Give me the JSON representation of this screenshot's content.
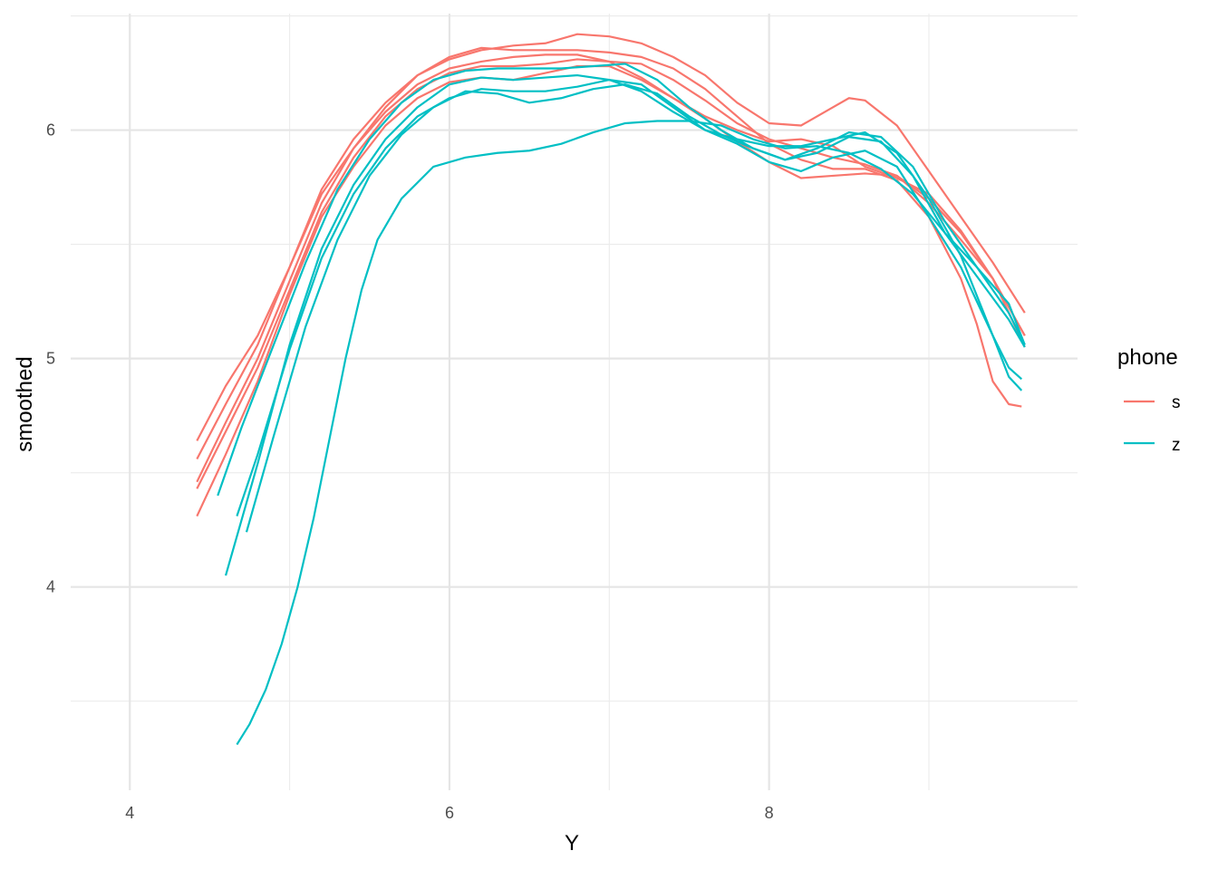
{
  "chart_data": {
    "type": "line",
    "xlabel": "Y",
    "ylabel": "smoothed",
    "xlim": [
      3.63,
      9.93
    ],
    "ylim": [
      3.11,
      6.51
    ],
    "x_ticks": [
      4,
      6,
      8
    ],
    "x_tick_labels": [
      "4",
      "6",
      "8"
    ],
    "x_minor_ticks": [
      5,
      7,
      9
    ],
    "y_ticks": [
      4,
      5,
      6
    ],
    "y_tick_labels": [
      "4",
      "5",
      "6"
    ],
    "y_minor_ticks": [
      3.5,
      4.5,
      5.5,
      6.5
    ],
    "grid": true,
    "legend": {
      "title": "phone",
      "placement": "right",
      "entries": [
        {
          "label": "s",
          "color": "#F8766D"
        },
        {
          "label": "z",
          "color": "#00BFC4"
        }
      ]
    },
    "series": [
      {
        "group": "s",
        "color": "#F8766D",
        "points": [
          [
            4.42,
            4.64
          ],
          [
            4.6,
            4.88
          ],
          [
            4.8,
            5.1
          ],
          [
            5.0,
            5.4
          ],
          [
            5.2,
            5.72
          ],
          [
            5.4,
            5.92
          ],
          [
            5.6,
            6.08
          ],
          [
            5.8,
            6.2
          ],
          [
            6.0,
            6.27
          ],
          [
            6.2,
            6.3
          ],
          [
            6.4,
            6.32
          ],
          [
            6.6,
            6.33
          ],
          [
            6.8,
            6.33
          ],
          [
            7.0,
            6.3
          ],
          [
            7.2,
            6.29
          ],
          [
            7.4,
            6.22
          ],
          [
            7.6,
            6.13
          ],
          [
            7.8,
            6.03
          ],
          [
            8.0,
            5.96
          ],
          [
            8.2,
            5.92
          ],
          [
            8.4,
            5.88
          ],
          [
            8.6,
            5.85
          ],
          [
            8.8,
            5.8
          ],
          [
            9.0,
            5.68
          ],
          [
            9.2,
            5.52
          ],
          [
            9.4,
            5.35
          ],
          [
            9.6,
            5.1
          ]
        ]
      },
      {
        "group": "s",
        "color": "#F8766D",
        "points": [
          [
            4.42,
            4.56
          ],
          [
            4.6,
            4.8
          ],
          [
            4.8,
            5.06
          ],
          [
            5.0,
            5.4
          ],
          [
            5.2,
            5.74
          ],
          [
            5.4,
            5.96
          ],
          [
            5.6,
            6.12
          ],
          [
            5.8,
            6.24
          ],
          [
            6.0,
            6.31
          ],
          [
            6.2,
            6.35
          ],
          [
            6.4,
            6.37
          ],
          [
            6.6,
            6.38
          ],
          [
            6.8,
            6.42
          ],
          [
            7.0,
            6.41
          ],
          [
            7.2,
            6.38
          ],
          [
            7.4,
            6.32
          ],
          [
            7.6,
            6.24
          ],
          [
            7.8,
            6.12
          ],
          [
            8.0,
            6.03
          ],
          [
            8.2,
            6.02
          ],
          [
            8.4,
            6.1
          ],
          [
            8.5,
            6.14
          ],
          [
            8.6,
            6.13
          ],
          [
            8.8,
            6.02
          ],
          [
            9.0,
            5.82
          ],
          [
            9.2,
            5.62
          ],
          [
            9.4,
            5.42
          ],
          [
            9.6,
            5.2
          ]
        ]
      },
      {
        "group": "s",
        "color": "#F8766D",
        "points": [
          [
            4.42,
            4.46
          ],
          [
            4.6,
            4.72
          ],
          [
            4.8,
            5.0
          ],
          [
            5.0,
            5.34
          ],
          [
            5.2,
            5.68
          ],
          [
            5.4,
            5.92
          ],
          [
            5.6,
            6.1
          ],
          [
            5.8,
            6.24
          ],
          [
            6.0,
            6.32
          ],
          [
            6.2,
            6.36
          ],
          [
            6.4,
            6.35
          ],
          [
            6.6,
            6.35
          ],
          [
            6.8,
            6.35
          ],
          [
            7.0,
            6.34
          ],
          [
            7.2,
            6.32
          ],
          [
            7.4,
            6.27
          ],
          [
            7.6,
            6.18
          ],
          [
            7.8,
            6.06
          ],
          [
            8.0,
            5.94
          ],
          [
            8.2,
            5.87
          ],
          [
            8.4,
            5.83
          ],
          [
            8.6,
            5.83
          ],
          [
            8.8,
            5.78
          ],
          [
            9.0,
            5.62
          ],
          [
            9.2,
            5.35
          ],
          [
            9.3,
            5.15
          ],
          [
            9.4,
            4.9
          ],
          [
            9.5,
            4.8
          ],
          [
            9.58,
            4.79
          ]
        ]
      },
      {
        "group": "s",
        "color": "#F8766D",
        "points": [
          [
            4.42,
            4.43
          ],
          [
            4.6,
            4.68
          ],
          [
            4.8,
            4.96
          ],
          [
            5.0,
            5.3
          ],
          [
            5.2,
            5.64
          ],
          [
            5.4,
            5.88
          ],
          [
            5.6,
            6.06
          ],
          [
            5.8,
            6.18
          ],
          [
            6.0,
            6.25
          ],
          [
            6.2,
            6.28
          ],
          [
            6.4,
            6.28
          ],
          [
            6.6,
            6.29
          ],
          [
            6.8,
            6.31
          ],
          [
            7.0,
            6.3
          ],
          [
            7.2,
            6.23
          ],
          [
            7.4,
            6.14
          ],
          [
            7.6,
            6.05
          ],
          [
            7.8,
            5.95
          ],
          [
            8.0,
            5.86
          ],
          [
            8.2,
            5.79
          ],
          [
            8.4,
            5.8
          ],
          [
            8.6,
            5.81
          ],
          [
            8.8,
            5.8
          ],
          [
            9.0,
            5.7
          ],
          [
            9.2,
            5.55
          ],
          [
            9.4,
            5.35
          ],
          [
            9.6,
            5.05
          ]
        ]
      },
      {
        "group": "s",
        "color": "#F8766D",
        "points": [
          [
            4.42,
            4.31
          ],
          [
            4.6,
            4.58
          ],
          [
            4.8,
            4.9
          ],
          [
            5.0,
            5.28
          ],
          [
            5.2,
            5.62
          ],
          [
            5.4,
            5.84
          ],
          [
            5.6,
            6.02
          ],
          [
            5.8,
            6.14
          ],
          [
            6.0,
            6.21
          ],
          [
            6.2,
            6.23
          ],
          [
            6.4,
            6.22
          ],
          [
            6.6,
            6.25
          ],
          [
            6.8,
            6.28
          ],
          [
            7.0,
            6.28
          ],
          [
            7.2,
            6.22
          ],
          [
            7.4,
            6.14
          ],
          [
            7.6,
            6.06
          ],
          [
            7.8,
            6.0
          ],
          [
            8.0,
            5.95
          ],
          [
            8.2,
            5.96
          ],
          [
            8.4,
            5.93
          ],
          [
            8.6,
            5.84
          ],
          [
            8.8,
            5.79
          ],
          [
            9.0,
            5.72
          ],
          [
            9.2,
            5.56
          ],
          [
            9.4,
            5.35
          ],
          [
            9.6,
            5.1
          ]
        ]
      },
      {
        "group": "z",
        "color": "#00BFC4",
        "points": [
          [
            4.55,
            4.4
          ],
          [
            4.7,
            4.7
          ],
          [
            4.9,
            5.06
          ],
          [
            5.1,
            5.42
          ],
          [
            5.3,
            5.74
          ],
          [
            5.5,
            5.96
          ],
          [
            5.7,
            6.12
          ],
          [
            5.9,
            6.22
          ],
          [
            6.1,
            6.26
          ],
          [
            6.3,
            6.27
          ],
          [
            6.5,
            6.27
          ],
          [
            6.7,
            6.27
          ],
          [
            6.9,
            6.28
          ],
          [
            7.1,
            6.29
          ],
          [
            7.3,
            6.22
          ],
          [
            7.5,
            6.1
          ],
          [
            7.7,
            6.0
          ],
          [
            7.9,
            5.92
          ],
          [
            8.1,
            5.87
          ],
          [
            8.3,
            5.9
          ],
          [
            8.5,
            5.97
          ],
          [
            8.7,
            5.95
          ],
          [
            8.9,
            5.8
          ],
          [
            9.1,
            5.55
          ],
          [
            9.3,
            5.36
          ],
          [
            9.5,
            5.17
          ],
          [
            9.6,
            5.05
          ]
        ]
      },
      {
        "group": "z",
        "color": "#00BFC4",
        "points": [
          [
            4.6,
            4.05
          ],
          [
            4.8,
            4.54
          ],
          [
            5.0,
            5.06
          ],
          [
            5.2,
            5.48
          ],
          [
            5.4,
            5.76
          ],
          [
            5.6,
            5.96
          ],
          [
            5.8,
            6.1
          ],
          [
            6.0,
            6.2
          ],
          [
            6.2,
            6.23
          ],
          [
            6.4,
            6.22
          ],
          [
            6.6,
            6.23
          ],
          [
            6.8,
            6.24
          ],
          [
            7.0,
            6.22
          ],
          [
            7.2,
            6.17
          ],
          [
            7.4,
            6.08
          ],
          [
            7.6,
            6.0
          ],
          [
            7.8,
            5.96
          ],
          [
            8.0,
            5.93
          ],
          [
            8.2,
            5.93
          ],
          [
            8.4,
            5.96
          ],
          [
            8.6,
            5.99
          ],
          [
            8.8,
            5.9
          ],
          [
            9.0,
            5.7
          ],
          [
            9.2,
            5.45
          ],
          [
            9.4,
            5.1
          ],
          [
            9.5,
            4.92
          ],
          [
            9.58,
            4.86
          ]
        ]
      },
      {
        "group": "z",
        "color": "#00BFC4",
        "points": [
          [
            4.67,
            4.31
          ],
          [
            4.8,
            4.58
          ],
          [
            5.0,
            5.04
          ],
          [
            5.2,
            5.44
          ],
          [
            5.4,
            5.72
          ],
          [
            5.6,
            5.92
          ],
          [
            5.8,
            6.06
          ],
          [
            6.0,
            6.14
          ],
          [
            6.2,
            6.18
          ],
          [
            6.4,
            6.17
          ],
          [
            6.6,
            6.17
          ],
          [
            6.8,
            6.19
          ],
          [
            7.0,
            6.22
          ],
          [
            7.2,
            6.2
          ],
          [
            7.4,
            6.1
          ],
          [
            7.6,
            6.0
          ],
          [
            7.8,
            5.94
          ],
          [
            8.0,
            5.86
          ],
          [
            8.2,
            5.82
          ],
          [
            8.4,
            5.88
          ],
          [
            8.6,
            5.91
          ],
          [
            8.8,
            5.84
          ],
          [
            9.0,
            5.62
          ],
          [
            9.2,
            5.4
          ],
          [
            9.4,
            5.1
          ],
          [
            9.5,
            4.96
          ],
          [
            9.58,
            4.91
          ]
        ]
      },
      {
        "group": "z",
        "color": "#00BFC4",
        "points": [
          [
            4.73,
            4.24
          ],
          [
            4.9,
            4.66
          ],
          [
            5.1,
            5.14
          ],
          [
            5.3,
            5.52
          ],
          [
            5.5,
            5.8
          ],
          [
            5.7,
            5.98
          ],
          [
            5.9,
            6.1
          ],
          [
            6.1,
            6.17
          ],
          [
            6.3,
            6.16
          ],
          [
            6.5,
            6.12
          ],
          [
            6.7,
            6.14
          ],
          [
            6.9,
            6.18
          ],
          [
            7.1,
            6.2
          ],
          [
            7.3,
            6.16
          ],
          [
            7.5,
            6.06
          ],
          [
            7.7,
            5.98
          ],
          [
            7.9,
            5.92
          ],
          [
            8.1,
            5.87
          ],
          [
            8.3,
            5.92
          ],
          [
            8.5,
            5.99
          ],
          [
            8.7,
            5.97
          ],
          [
            8.9,
            5.84
          ],
          [
            9.1,
            5.6
          ],
          [
            9.3,
            5.4
          ],
          [
            9.5,
            5.2
          ],
          [
            9.6,
            5.06
          ]
        ]
      },
      {
        "group": "z",
        "color": "#00BFC4",
        "points": [
          [
            4.67,
            3.31
          ],
          [
            4.75,
            3.4
          ],
          [
            4.85,
            3.55
          ],
          [
            4.95,
            3.75
          ],
          [
            5.05,
            4.0
          ],
          [
            5.15,
            4.3
          ],
          [
            5.25,
            4.65
          ],
          [
            5.35,
            5.0
          ],
          [
            5.45,
            5.3
          ],
          [
            5.55,
            5.52
          ],
          [
            5.7,
            5.7
          ],
          [
            5.9,
            5.84
          ],
          [
            6.1,
            5.88
          ],
          [
            6.3,
            5.9
          ],
          [
            6.5,
            5.91
          ],
          [
            6.7,
            5.94
          ],
          [
            6.9,
            5.99
          ],
          [
            7.1,
            6.03
          ],
          [
            7.3,
            6.04
          ],
          [
            7.5,
            6.04
          ],
          [
            7.7,
            6.02
          ],
          [
            7.9,
            5.96
          ],
          [
            8.1,
            5.92
          ],
          [
            8.3,
            5.93
          ],
          [
            8.5,
            5.9
          ],
          [
            8.7,
            5.83
          ],
          [
            8.9,
            5.72
          ],
          [
            9.1,
            5.55
          ],
          [
            9.3,
            5.4
          ],
          [
            9.5,
            5.24
          ],
          [
            9.6,
            5.06
          ]
        ]
      }
    ]
  }
}
